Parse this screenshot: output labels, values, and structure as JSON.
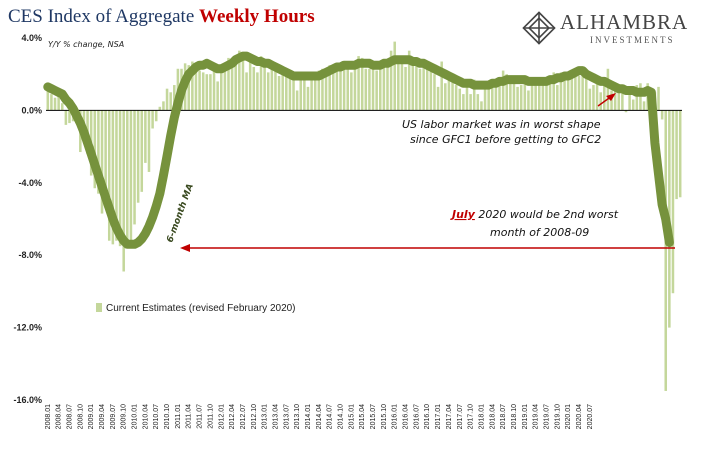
{
  "header": {
    "title_main": "CES Index of Aggregate ",
    "title_emph": "Weekly Hours"
  },
  "logo": {
    "name": "ALHAMBRA",
    "sub": "INVESTMENTS"
  },
  "chart_data": {
    "type": "bar",
    "title": "CES Index of Aggregate Weekly Hours",
    "ylabel": "Y/Y % change, NSA",
    "ylim": [
      -16,
      4
    ],
    "yticks": [
      4,
      0,
      -4,
      -8,
      -12,
      -16
    ],
    "ytick_labels": [
      "4.0%",
      "0.0%",
      "-4.0%",
      "-8.0%",
      "-12.0%",
      "-16.0%"
    ],
    "grid": false,
    "legend_position": "lower-left",
    "series": [
      {
        "name": "Current Estimates (revised February 2020)",
        "kind": "bar",
        "color": "#c4d79b",
        "start": "2008.01",
        "values": [
          1.2,
          0.9,
          0.7,
          0.8,
          0.4,
          -0.8,
          -0.7,
          -0.6,
          -0.5,
          -2.3,
          -1.4,
          -2.4,
          -3.6,
          -4.3,
          -4.6,
          -5.7,
          -5.4,
          -7.2,
          -7.4,
          -7.2,
          -7.5,
          -8.9,
          -7.2,
          -7.6,
          -6.3,
          -5.1,
          -4.5,
          -2.9,
          -3.4,
          -1.0,
          -0.6,
          0.2,
          0.5,
          1.2,
          1.0,
          1.4,
          2.3,
          2.3,
          2.6,
          2.5,
          2.7,
          2.6,
          2.2,
          2.1,
          2.0,
          2.0,
          2.4,
          1.6,
          2.4,
          2.3,
          2.9,
          2.8,
          3.0,
          3.3,
          3.0,
          2.1,
          2.8,
          2.4,
          2.1,
          3.0,
          2.5,
          2.1,
          2.3,
          2.5,
          1.9,
          2.0,
          1.9,
          1.8,
          1.7,
          1.1,
          1.8,
          2.1,
          1.3,
          2.1,
          1.9,
          2.2,
          2.3,
          2.1,
          2.5,
          2.5,
          2.5,
          2.4,
          2.4,
          2.5,
          2.1,
          2.5,
          3.0,
          2.9,
          2.3,
          2.3,
          2.3,
          2.2,
          2.6,
          2.5,
          2.7,
          3.3,
          3.8,
          3.0,
          3.0,
          2.4,
          3.3,
          2.8,
          2.6,
          2.3,
          2.8,
          2.3,
          2.2,
          2.0,
          1.3,
          2.7,
          1.5,
          1.8,
          1.7,
          1.4,
          1.2,
          0.9,
          1.7,
          0.9,
          1.7,
          0.9,
          0.5,
          1.3,
          1.5,
          1.5,
          1.3,
          1.7,
          2.2,
          2.0,
          1.8,
          1.6,
          1.3,
          1.4,
          1.7,
          1.1,
          1.4,
          1.4,
          1.4,
          1.6,
          1.7,
          1.8,
          2.1,
          1.4,
          2.1,
          1.9,
          2.1,
          1.9,
          2.1,
          1.9,
          2.1,
          2.0,
          1.2,
          1.4,
          1.9,
          1.0,
          1.8,
          2.3,
          1.1,
          1.5,
          1.1,
          1.2,
          -0.1,
          1.1,
          0.6,
          1.4,
          1.5,
          0.5,
          1.5,
          1.1,
          1.0,
          1.3,
          -0.5,
          -15.5,
          -12.0,
          -10.1,
          -4.9,
          -4.8
        ]
      },
      {
        "name": "6-month MA",
        "kind": "line",
        "color": "#76923c",
        "start": "2008.01",
        "values": [
          1.3,
          1.2,
          1.1,
          1.0,
          0.9,
          0.6,
          0.4,
          0.1,
          -0.3,
          -0.7,
          -1.2,
          -1.8,
          -2.4,
          -3.0,
          -3.6,
          -4.2,
          -4.8,
          -5.4,
          -6.0,
          -6.5,
          -6.9,
          -7.2,
          -7.4,
          -7.4,
          -7.4,
          -7.3,
          -7.1,
          -6.8,
          -6.4,
          -5.9,
          -5.3,
          -4.6,
          -3.6,
          -2.5,
          -1.4,
          -0.4,
          0.4,
          1.1,
          1.6,
          2.0,
          2.2,
          2.4,
          2.5,
          2.5,
          2.6,
          2.5,
          2.4,
          2.3,
          2.3,
          2.4,
          2.5,
          2.6,
          2.8,
          2.9,
          3.0,
          3.0,
          2.9,
          2.8,
          2.7,
          2.7,
          2.6,
          2.6,
          2.5,
          2.4,
          2.3,
          2.2,
          2.1,
          2.0,
          1.9,
          1.9,
          1.9,
          1.9,
          1.9,
          1.9,
          1.9,
          1.9,
          2.0,
          2.1,
          2.2,
          2.3,
          2.4,
          2.4,
          2.5,
          2.5,
          2.5,
          2.5,
          2.6,
          2.6,
          2.6,
          2.6,
          2.5,
          2.5,
          2.5,
          2.6,
          2.6,
          2.7,
          2.8,
          2.8,
          2.8,
          2.8,
          2.8,
          2.7,
          2.7,
          2.6,
          2.6,
          2.5,
          2.4,
          2.3,
          2.2,
          2.1,
          2.0,
          1.9,
          1.8,
          1.7,
          1.6,
          1.5,
          1.5,
          1.5,
          1.4,
          1.4,
          1.4,
          1.4,
          1.4,
          1.5,
          1.5,
          1.6,
          1.6,
          1.7,
          1.7,
          1.7,
          1.7,
          1.7,
          1.7,
          1.6,
          1.6,
          1.6,
          1.6,
          1.6,
          1.6,
          1.7,
          1.7,
          1.8,
          1.8,
          1.9,
          1.9,
          2.0,
          2.1,
          2.2,
          2.2,
          2.0,
          1.9,
          1.8,
          1.7,
          1.6,
          1.6,
          1.5,
          1.4,
          1.3,
          1.2,
          1.2,
          1.1,
          1.1,
          1.1,
          1.0,
          1.0,
          1.0,
          1.1,
          1.0,
          -1.8,
          -3.5,
          -5.2,
          -6.0,
          -7.3
        ]
      }
    ],
    "xtick_labels": [
      "2008.01",
      "2008.04",
      "2008.07",
      "2008.10",
      "2009.01",
      "2009.04",
      "2009.07",
      "2009.10",
      "2010.01",
      "2010.04",
      "2010.07",
      "2010.10",
      "2011.01",
      "2011.04",
      "2011.07",
      "2011.10",
      "2012.01",
      "2012.04",
      "2012.07",
      "2012.10",
      "2013.01",
      "2013.04",
      "2013.07",
      "2013.10",
      "2014.01",
      "2014.04",
      "2014.07",
      "2014.10",
      "2015.01",
      "2015.04",
      "2015.07",
      "2015.10",
      "2016.01",
      "2016.04",
      "2016.07",
      "2016.10",
      "2017.01",
      "2017.04",
      "2017.07",
      "2017.10",
      "2018.01",
      "2018.04",
      "2018.07",
      "2018.10",
      "2019.01",
      "2019.04",
      "2019.07",
      "2019.10",
      "2020.01",
      "2020.04",
      "2020.07"
    ],
    "annotations": [
      {
        "id": "gfc",
        "lines": [
          "US labor market was in worst shape",
          "since GFC1 before getting to GFC2"
        ]
      },
      {
        "id": "july",
        "red": "July",
        "lines": [
          " 2020  would be 2nd worst",
          "month of 2008-09"
        ]
      },
      {
        "id": "ma",
        "text": "6-month MA"
      }
    ],
    "colors": {
      "bar": "#c4d79b",
      "ma_line": "#76923c",
      "annotation_arrow": "#c00000"
    }
  }
}
